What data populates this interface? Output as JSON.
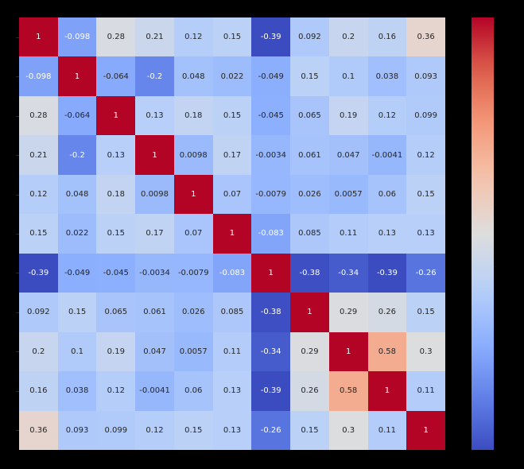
{
  "chart_data": {
    "type": "heatmap",
    "title": "",
    "xlabel": "",
    "ylabel": "",
    "x_tick_labels": [],
    "y_tick_labels": [],
    "colormap": "coolwarm",
    "vmin": -0.39,
    "vmax": 1,
    "annotate": true,
    "colorbar": {
      "position": "right",
      "tick_labels": [],
      "range": [
        -0.39,
        1
      ]
    },
    "matrix": [
      [
        "1",
        "-0.098",
        "0.28",
        "0.21",
        "0.12",
        "0.15",
        "-0.39",
        "0.092",
        "0.2",
        "0.16",
        "0.36"
      ],
      [
        "-0.098",
        "1",
        "-0.064",
        "-0.2",
        "0.048",
        "0.022",
        "-0.049",
        "0.15",
        "0.1",
        "0.038",
        "0.093"
      ],
      [
        "0.28",
        "-0.064",
        "1",
        "0.13",
        "0.18",
        "0.15",
        "-0.045",
        "0.065",
        "0.19",
        "0.12",
        "0.099"
      ],
      [
        "0.21",
        "-0.2",
        "0.13",
        "1",
        "0.0098",
        "0.17",
        "-0.0034",
        "0.061",
        "0.047",
        "-0.0041",
        "0.12"
      ],
      [
        "0.12",
        "0.048",
        "0.18",
        "0.0098",
        "1",
        "0.07",
        "-0.0079",
        "0.026",
        "0.0057",
        "0.06",
        "0.15"
      ],
      [
        "0.15",
        "0.022",
        "0.15",
        "0.17",
        "0.07",
        "1",
        "-0.083",
        "0.085",
        "0.11",
        "0.13",
        "0.13"
      ],
      [
        "-0.39",
        "-0.049",
        "-0.045",
        "-0.0034",
        "-0.0079",
        "-0.083",
        "1",
        "-0.38",
        "-0.34",
        "-0.39",
        "-0.26"
      ],
      [
        "0.092",
        "0.15",
        "0.065",
        "0.061",
        "0.026",
        "0.085",
        "-0.38",
        "1",
        "0.29",
        "0.26",
        "0.15"
      ],
      [
        "0.2",
        "0.1",
        "0.19",
        "0.047",
        "0.0057",
        "0.11",
        "-0.34",
        "0.29",
        "1",
        "0.58",
        "0.3"
      ],
      [
        "0.16",
        "0.038",
        "0.12",
        "-0.0041",
        "0.06",
        "0.13",
        "-0.39",
        "0.26",
        "0.58",
        "1",
        "0.11"
      ],
      [
        "0.36",
        "0.093",
        "0.099",
        "0.12",
        "0.15",
        "0.13",
        "-0.26",
        "0.15",
        "0.3",
        "0.11",
        "1"
      ]
    ]
  },
  "colors": {
    "background": "#000000",
    "cmap_low": "#3b4cc0",
    "cmap_mid": "#dddddd",
    "cmap_high": "#b40426",
    "text_dark": "#262626",
    "text_light": "#ffffff"
  }
}
